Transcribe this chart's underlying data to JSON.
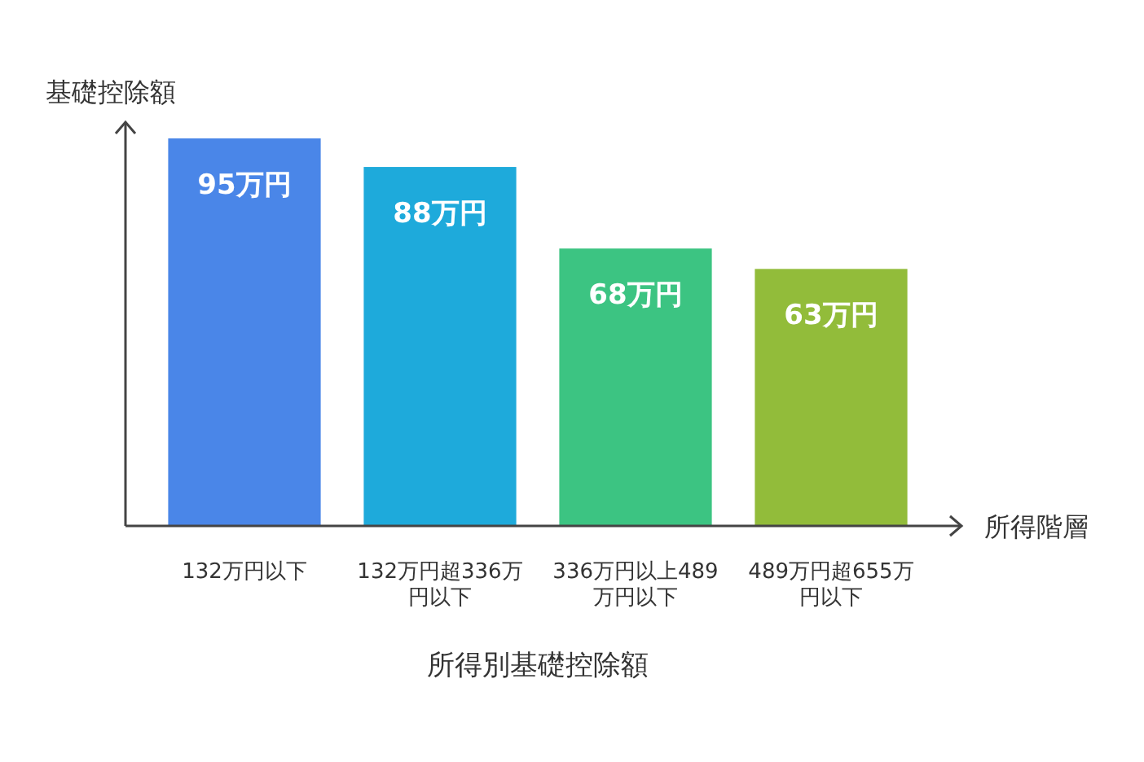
{
  "chart_data": {
    "type": "bar",
    "title": "所得別基礎控除額",
    "ylabel": "基礎控除額",
    "xlabel": "所得階層",
    "categories": [
      "132万円以下",
      "132万円超336万円以下",
      "336万円以上489万円以下",
      "489万円超655万円以下"
    ],
    "values": [
      95,
      88,
      68,
      63
    ],
    "value_labels": [
      "95万円",
      "88万円",
      "68万円",
      "63万円"
    ],
    "colors": [
      "#4a86e8",
      "#1eaadb",
      "#3cc482",
      "#92bc3a"
    ],
    "grid": false
  }
}
